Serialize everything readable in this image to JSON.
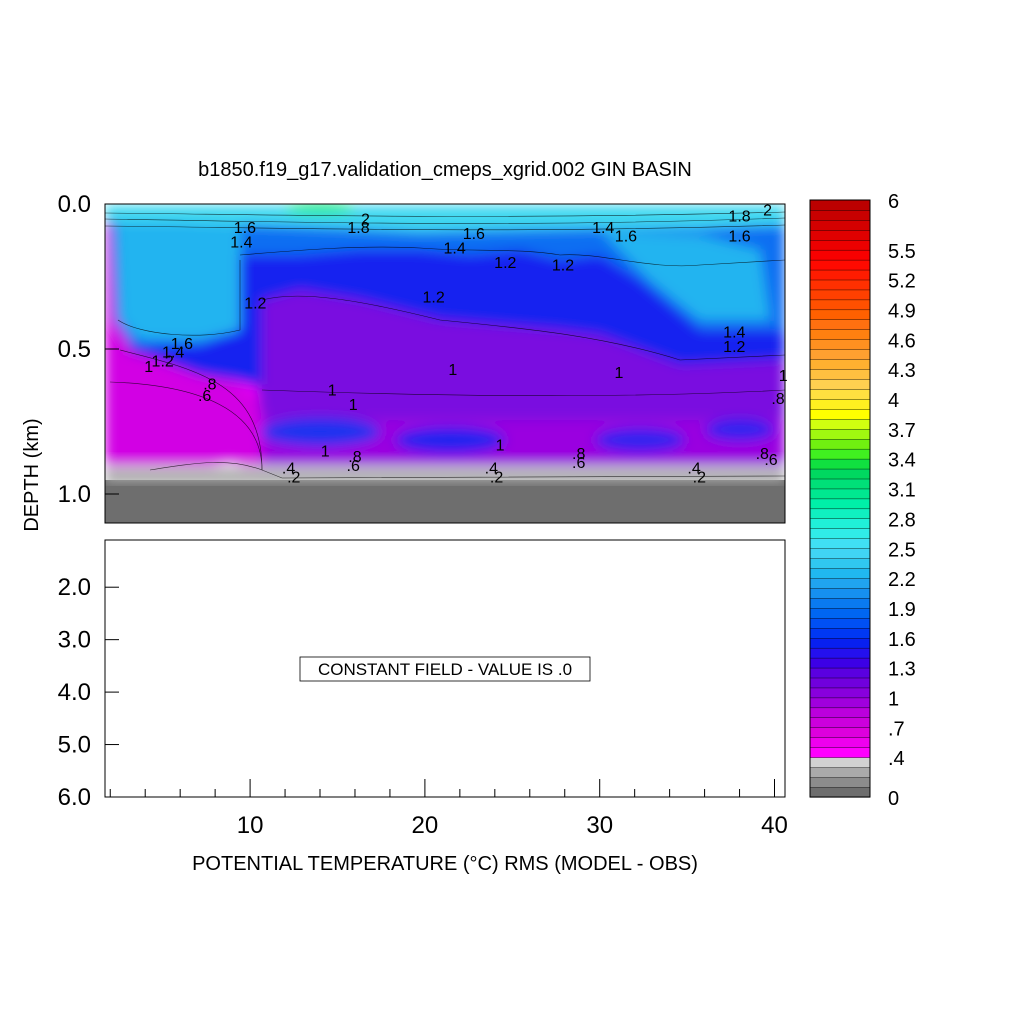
{
  "chart_data": {
    "type": "heatmap",
    "title": "b1850.f19_g17.validation_cmeps_xgrid.002 GIN BASIN",
    "xlabel": "POTENTIAL TEMPERATURE (°C) RMS (MODEL - OBS)",
    "ylabel": "DEPTH (km)",
    "xlim": [
      1.7,
      40.6
    ],
    "ylim_upper": [
      0.0,
      1.1
    ],
    "ylim_lower": [
      1.1,
      6.0
    ],
    "x_ticks": [
      "10",
      "20",
      "30",
      "40"
    ],
    "y_ticks_upper": [
      "0.0",
      "0.5",
      "1.0"
    ],
    "y_ticks_lower": [
      "2.0",
      "3.0",
      "4.0",
      "5.0",
      "6.0"
    ],
    "lower_panel_message": "CONSTANT FIELD - VALUE IS .0",
    "colorbar": {
      "labels": [
        "0",
        ".4",
        ".7",
        "1",
        "1.3",
        "1.6",
        "1.9",
        "2.2",
        "2.5",
        "2.8",
        "3.1",
        "3.4",
        "3.7",
        "4",
        "4.3",
        "4.6",
        "4.9",
        "5.2",
        "5.5",
        "6"
      ],
      "colors": [
        "#6e6e6e",
        "#8c8c8c",
        "#aaaaaa",
        "#d2d2d2",
        "#ff00ff",
        "#ee00ee",
        "#dd00dd",
        "#cc00dd",
        "#bb00dd",
        "#a000dd",
        "#8800dd",
        "#7000dd",
        "#5a00e0",
        "#3c00e6",
        "#2410ee",
        "#0820f0",
        "#0038f4",
        "#0050f4",
        "#0066f2",
        "#0a7af0",
        "#1690f0",
        "#20a4f0",
        "#20b8f0",
        "#30c8f0",
        "#40d4f4",
        "#40e0f4",
        "#30ece8",
        "#20f0d8",
        "#10f0c0",
        "#00f0a8",
        "#00e890",
        "#00e078",
        "#00d860",
        "#10e040",
        "#40f020",
        "#70f010",
        "#a0f810",
        "#d0ff10",
        "#ffff00",
        "#fff020",
        "#ffe040",
        "#ffd050",
        "#ffc040",
        "#ffb030",
        "#ffa030",
        "#ff9020",
        "#ff8010",
        "#ff7010",
        "#ff6000",
        "#ff5000",
        "#ff4000",
        "#ff3000",
        "#ff1c00",
        "#ff0a00",
        "#f80000",
        "#ec0000",
        "#e00000",
        "#d40000",
        "#c80000",
        "#bc0000"
      ]
    },
    "contour_labels": [
      {
        "text": "1.6",
        "x": 9.7,
        "y": 0.1
      },
      {
        "text": "1.4",
        "x": 9.5,
        "y": 0.15
      },
      {
        "text": "1.8",
        "x": 16.2,
        "y": 0.1
      },
      {
        "text": "2",
        "x": 16.6,
        "y": 0.07
      },
      {
        "text": "1.6",
        "x": 22.8,
        "y": 0.12
      },
      {
        "text": "1.4",
        "x": 21.7,
        "y": 0.17
      },
      {
        "text": "1.2",
        "x": 24.6,
        "y": 0.22
      },
      {
        "text": "1.2",
        "x": 27.9,
        "y": 0.23
      },
      {
        "text": "1.4",
        "x": 30.2,
        "y": 0.1
      },
      {
        "text": "1.6",
        "x": 31.5,
        "y": 0.13
      },
      {
        "text": "1.8",
        "x": 38.0,
        "y": 0.06
      },
      {
        "text": "2",
        "x": 39.6,
        "y": 0.04
      },
      {
        "text": "1.6",
        "x": 38.0,
        "y": 0.13
      },
      {
        "text": "1.2",
        "x": 10.3,
        "y": 0.36
      },
      {
        "text": "1.2",
        "x": 20.5,
        "y": 0.34
      },
      {
        "text": "1.4",
        "x": 37.7,
        "y": 0.46
      },
      {
        "text": "1.2",
        "x": 37.7,
        "y": 0.51
      },
      {
        "text": "1.6",
        "x": 6.1,
        "y": 0.5
      },
      {
        "text": "1.4",
        "x": 5.6,
        "y": 0.53
      },
      {
        "text": "1.2",
        "x": 5.0,
        "y": 0.56
      },
      {
        "text": "1",
        "x": 4.2,
        "y": 0.58
      },
      {
        "text": "1",
        "x": 21.6,
        "y": 0.59
      },
      {
        "text": "1",
        "x": 31.1,
        "y": 0.6
      },
      {
        "text": "1",
        "x": 14.7,
        "y": 0.66
      },
      {
        "text": "1",
        "x": 15.9,
        "y": 0.71
      },
      {
        "text": ".8",
        "x": 7.7,
        "y": 0.64
      },
      {
        "text": ".6",
        "x": 7.4,
        "y": 0.68
      },
      {
        "text": ".8",
        "x": 40.2,
        "y": 0.69
      },
      {
        "text": "1",
        "x": 40.5,
        "y": 0.61
      },
      {
        "text": "1",
        "x": 24.3,
        "y": 0.85
      },
      {
        "text": "1",
        "x": 14.3,
        "y": 0.87
      },
      {
        "text": ".8",
        "x": 16.0,
        "y": 0.89
      },
      {
        "text": ".6",
        "x": 15.9,
        "y": 0.92
      },
      {
        "text": ".8",
        "x": 28.8,
        "y": 0.88
      },
      {
        "text": ".6",
        "x": 28.8,
        "y": 0.91
      },
      {
        "text": ".8",
        "x": 39.3,
        "y": 0.88
      },
      {
        "text": ".6",
        "x": 39.8,
        "y": 0.9
      },
      {
        "text": ".4",
        "x": 12.2,
        "y": 0.93
      },
      {
        "text": ".2",
        "x": 12.5,
        "y": 0.96
      },
      {
        "text": ".4",
        "x": 23.8,
        "y": 0.93
      },
      {
        "text": ".2",
        "x": 24.1,
        "y": 0.96
      },
      {
        "text": ".4",
        "x": 35.4,
        "y": 0.93
      },
      {
        "text": ".2",
        "x": 35.7,
        "y": 0.96
      }
    ]
  }
}
